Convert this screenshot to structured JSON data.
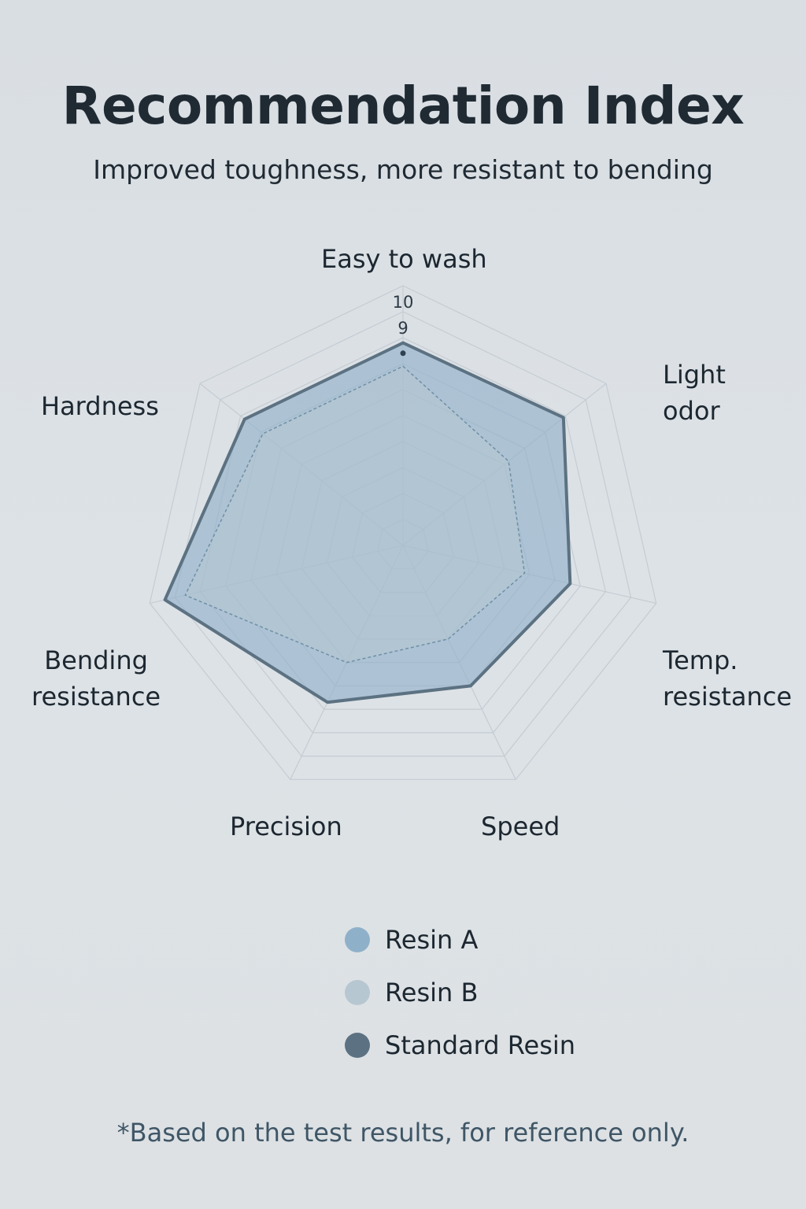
{
  "header": {
    "title": "Recommendation Index",
    "subtitle": "Improved toughness, more resistant to bending"
  },
  "footnote": "*Based on the test results, for reference only.",
  "chart_data": {
    "type": "radar",
    "axes": [
      "Easy to wash",
      "Light\nodor",
      "Temp.\nresistance",
      "Speed",
      "Precision",
      "Bending\nresistance",
      "Hardness"
    ],
    "rlim": [
      0,
      10
    ],
    "tick_labels": [
      "10",
      "9"
    ],
    "grid": true,
    "legend_position": "bottom",
    "series": [
      {
        "name": "Resin A",
        "values": [
          7.8,
          7.9,
          6.6,
          6.0,
          6.7,
          9.4,
          7.8
        ],
        "color": "#8fb0c9"
      },
      {
        "name": "Resin B",
        "values": [
          6.9,
          5.2,
          4.8,
          4.0,
          5.0,
          8.6,
          6.9
        ],
        "color": "#b7c7d1"
      },
      {
        "name": "Standard Resin",
        "values": [
          7.8,
          7.9,
          6.6,
          6.0,
          6.7,
          9.4,
          7.8
        ],
        "color": "#5c7282"
      }
    ]
  }
}
